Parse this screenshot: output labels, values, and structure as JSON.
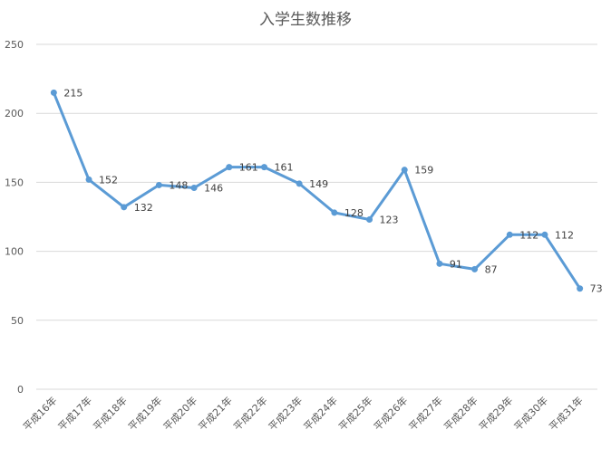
{
  "chart_data": {
    "type": "line",
    "title": "入学生数推移",
    "xlabel": "",
    "ylabel": "",
    "categories": [
      "平成16年",
      "平成17年",
      "平成18年",
      "平成19年",
      "平成20年",
      "平成21年",
      "平成22年",
      "平成23年",
      "平成24年",
      "平成25年",
      "平成26年",
      "平成27年",
      "平成28年",
      "平成29年",
      "平成30年",
      "平成31年"
    ],
    "series": [
      {
        "values": [
          215,
          152,
          132,
          148,
          146,
          161,
          161,
          149,
          128,
          123,
          159,
          91,
          87,
          112,
          112,
          73
        ]
      }
    ],
    "ylim": [
      0,
      250
    ],
    "yticks": [
      0,
      50,
      100,
      150,
      200,
      250
    ],
    "grid": true,
    "legend": "none",
    "colors": {
      "line": "#5b9bd5",
      "grid": "#d9d9d9",
      "text": "#595959"
    }
  }
}
